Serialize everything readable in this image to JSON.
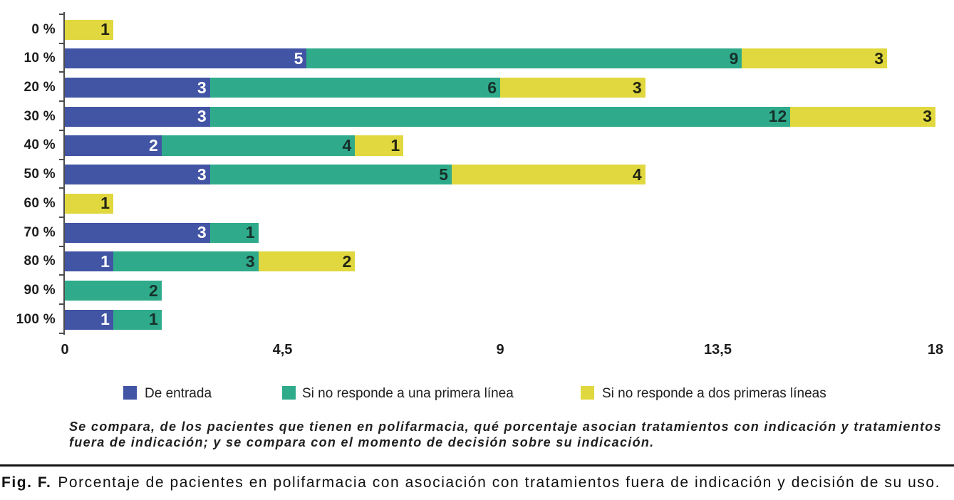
{
  "chart_data": {
    "type": "bar",
    "orientation": "horizontal",
    "stacked": true,
    "title": "",
    "xlabel": "",
    "ylabel": "",
    "categories": [
      "0 %",
      "10 %",
      "20 %",
      "30 %",
      "40 %",
      "50 %",
      "60 %",
      "70 %",
      "80 %",
      "90 %",
      "100 %"
    ],
    "series": [
      {
        "name": "De entrada",
        "color": "#4254a4",
        "label_color": "#ffffff",
        "values": [
          0,
          5,
          3,
          3,
          2,
          3,
          0,
          3,
          1,
          0,
          1
        ]
      },
      {
        "name": "Si no responde a una primera línea",
        "color": "#2fab8c",
        "label_color": "#17312a",
        "values": [
          0,
          9,
          6,
          12,
          4,
          5,
          0,
          1,
          3,
          2,
          1
        ]
      },
      {
        "name": "Si no responde a dos primeras líneas",
        "color": "#e0d83e",
        "label_color": "#222512",
        "values": [
          1,
          3,
          3,
          3,
          1,
          4,
          1,
          0,
          2,
          0,
          0
        ]
      }
    ],
    "xlim": [
      0,
      18
    ],
    "x_ticks": [
      {
        "value": 0,
        "label": "0"
      },
      {
        "value": 4.5,
        "label": "4,5"
      },
      {
        "value": 9,
        "label": "9"
      },
      {
        "value": 13.5,
        "label": "13,5"
      },
      {
        "value": 18,
        "label": "18"
      }
    ],
    "legend_position": "bottom",
    "grid": false
  },
  "note": {
    "line1": "Se compara, de los pacientes que tienen en polifarmacia, qué porcentaje asocian tratamientos con indicación y tratamientos",
    "line2": "fuera de indicación; y se compara con el momento de decisión sobre su indicación."
  },
  "figure_caption": {
    "label": "Fig. F.",
    "text": "Porcentaje de pacientes en polifarmacia con asociación con tratamientos fuera de indicación y decisión de su uso."
  }
}
